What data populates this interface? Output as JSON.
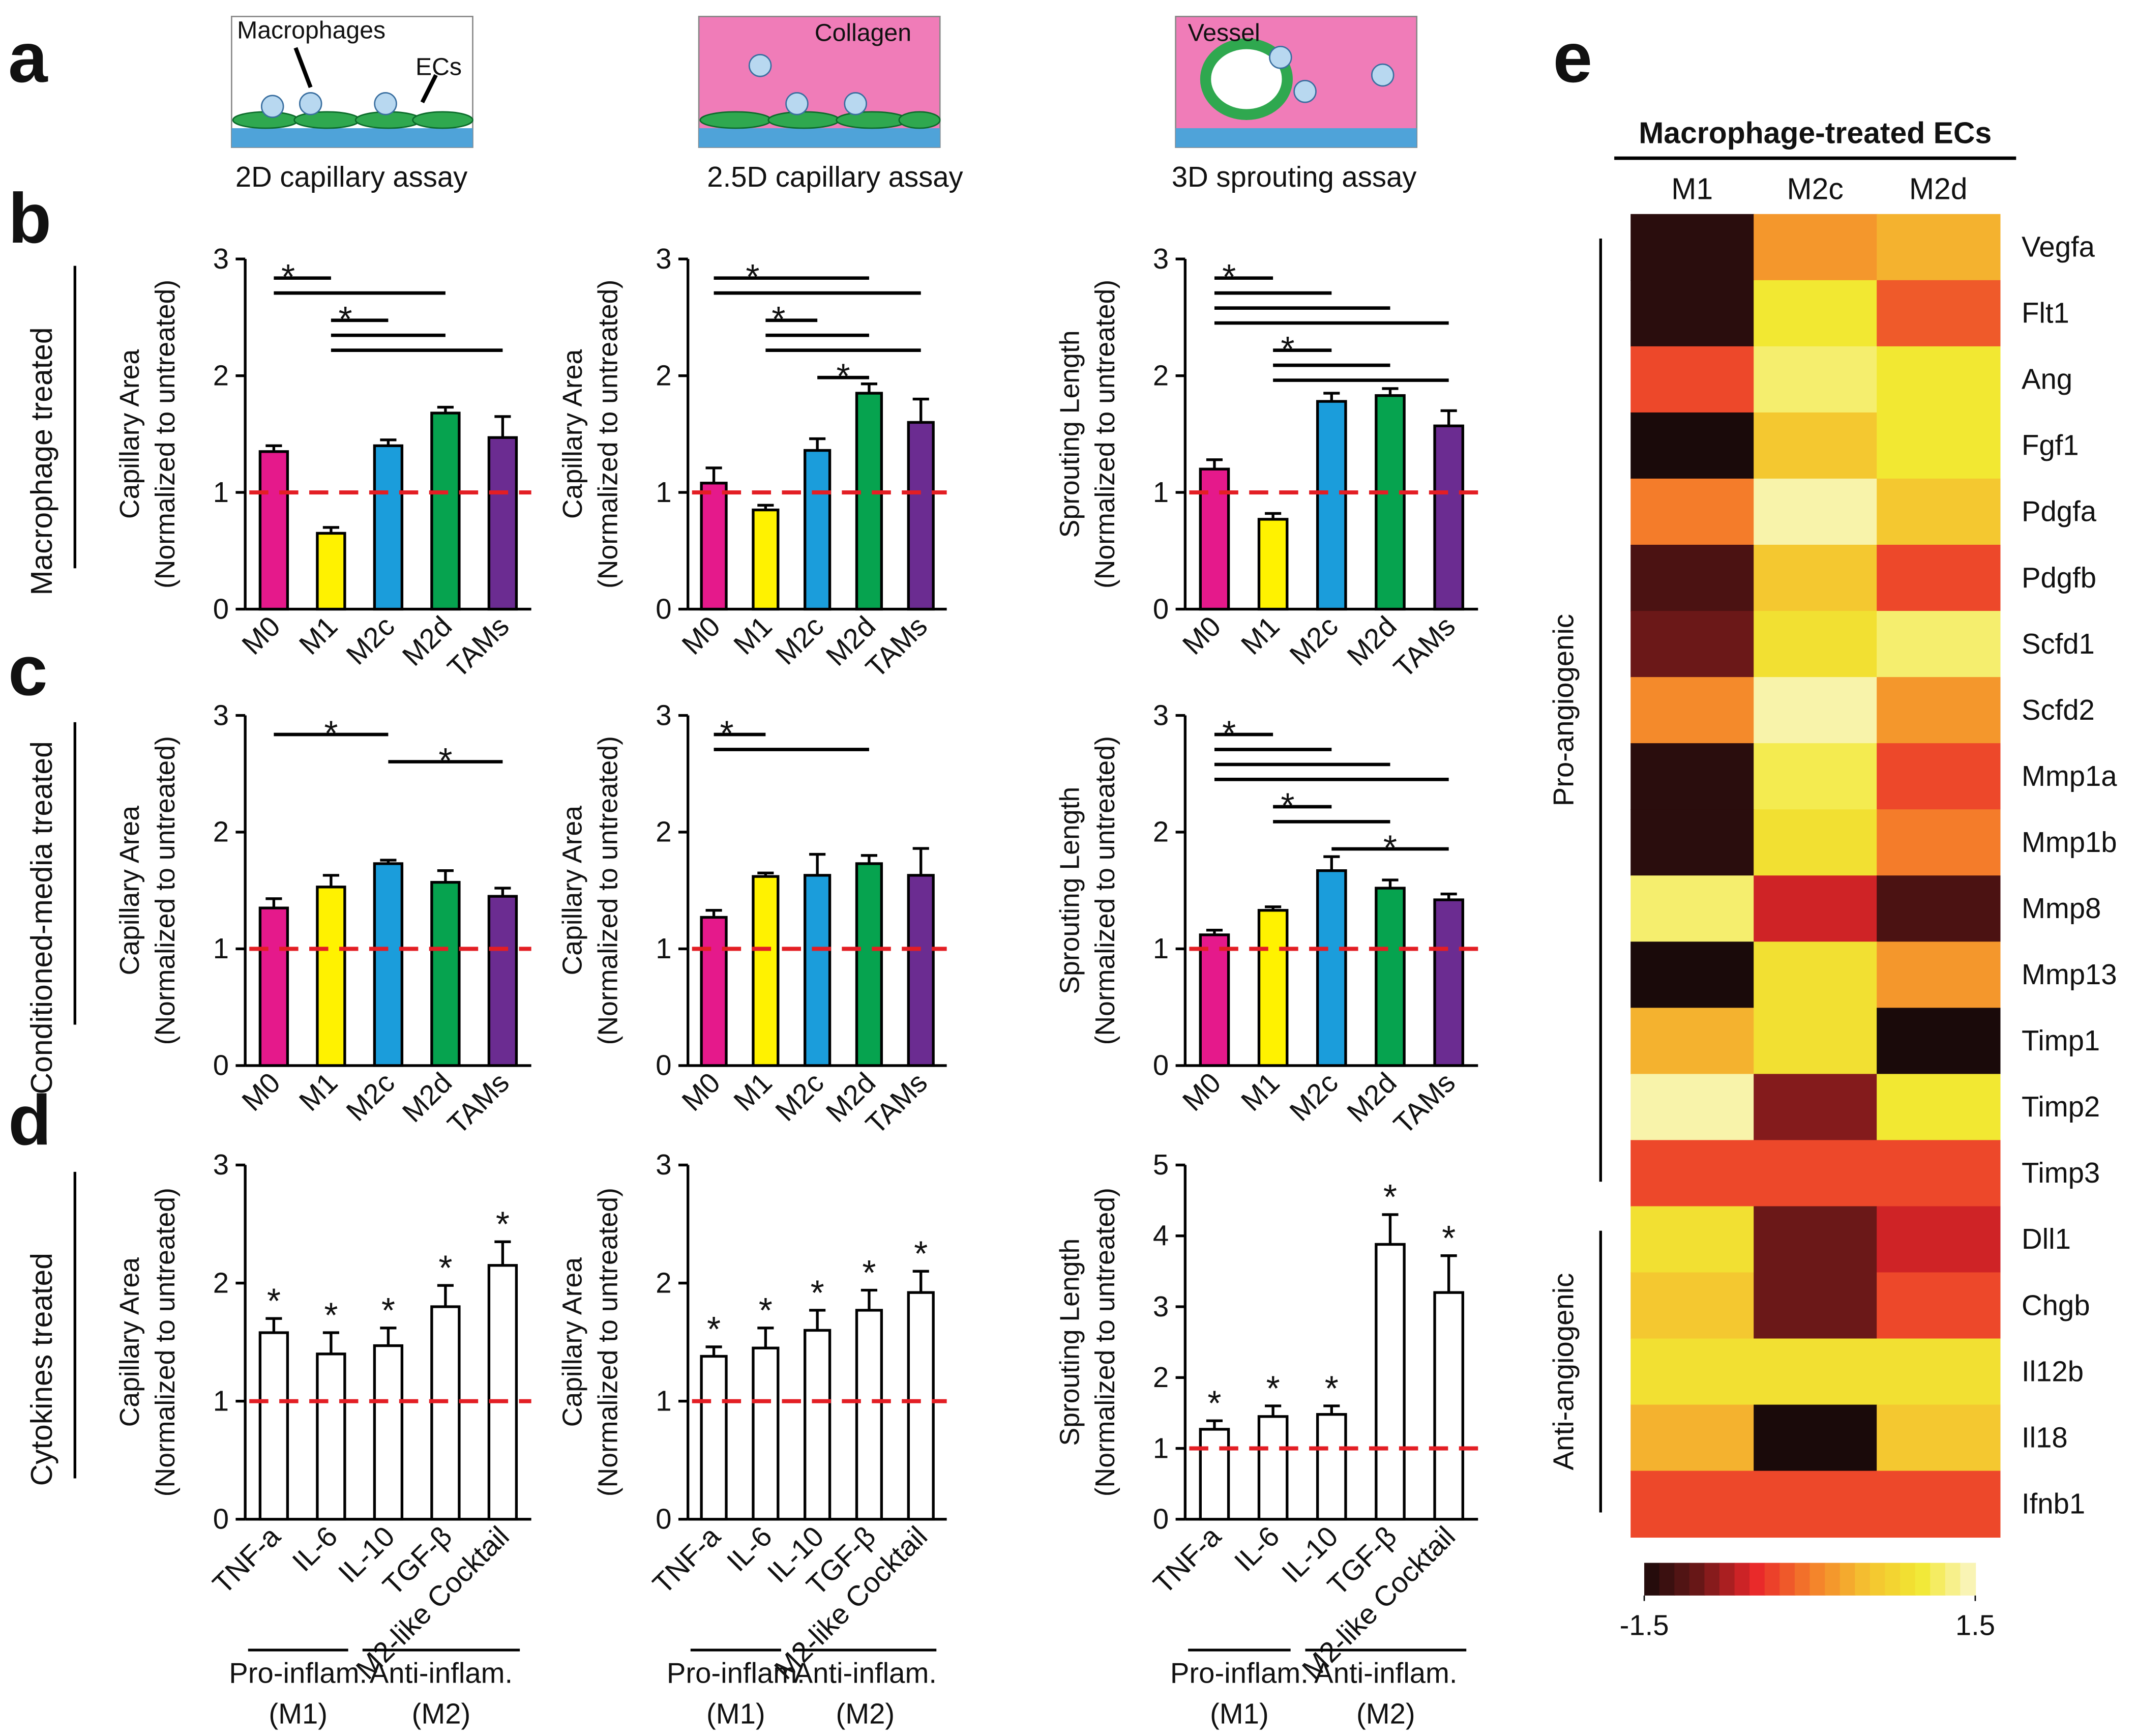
{
  "panel_labels": [
    "a",
    "b",
    "c",
    "d",
    "e"
  ],
  "schematics": [
    {
      "title": "2D capillary assay",
      "labels": [
        "Macrophages",
        "ECs"
      ]
    },
    {
      "title": "2.5D capillary assay",
      "labels": [
        "Collagen"
      ]
    },
    {
      "title": "3D sprouting assay",
      "labels": [
        "Vessel"
      ]
    }
  ],
  "row_labels": [
    "Macrophage treated",
    "Conditioned-media treated",
    "Cytokines treated"
  ],
  "chart_data": [
    {
      "type": "bar",
      "y_label": [
        "Capillary Area",
        "(Normalized to untreated)"
      ],
      "categories": [
        "M0",
        "M1",
        "M2c",
        "M2d",
        "TAMs"
      ],
      "values": [
        1.35,
        0.65,
        1.4,
        1.68,
        1.47
      ],
      "errors": [
        0.05,
        0.05,
        0.05,
        0.05,
        0.18
      ],
      "colors": [
        "#e5198b",
        "#fff200",
        "#1b9ddb",
        "#06a34f",
        "#6b2c91"
      ],
      "ylim": [
        0,
        3
      ],
      "yticks": [
        0,
        1,
        2,
        3
      ],
      "reference_line": 1,
      "reference_color": "#e31e24",
      "significance": [
        {
          "from": "M0",
          "to": "M1",
          "label": "*"
        },
        {
          "from": "M0",
          "to": "M2d"
        },
        {
          "from": "M1",
          "to": "M2c",
          "label": "*"
        },
        {
          "from": "M1",
          "to": "M2d"
        },
        {
          "from": "M1",
          "to": "TAMs"
        }
      ]
    },
    {
      "type": "bar",
      "y_label": [
        "Capillary Area",
        "(Normalized to untreated)"
      ],
      "categories": [
        "M0",
        "M1",
        "M2c",
        "M2d",
        "TAMs"
      ],
      "values": [
        1.08,
        0.85,
        1.36,
        1.85,
        1.6
      ],
      "errors": [
        0.13,
        0.04,
        0.1,
        0.08,
        0.2
      ],
      "colors": [
        "#e5198b",
        "#fff200",
        "#1b9ddb",
        "#06a34f",
        "#6b2c91"
      ],
      "ylim": [
        0,
        3
      ],
      "yticks": [
        0,
        1,
        2,
        3
      ],
      "reference_line": 1,
      "reference_color": "#e31e24",
      "significance": [
        {
          "from": "M0",
          "to": "M2d",
          "label": "*"
        },
        {
          "from": "M0",
          "to": "TAMs"
        },
        {
          "from": "M1",
          "to": "M2c",
          "label": "*"
        },
        {
          "from": "M1",
          "to": "M2d"
        },
        {
          "from": "M1",
          "to": "TAMs"
        },
        {
          "from": "M2c",
          "to": "M2d",
          "label": "*"
        }
      ]
    },
    {
      "type": "bar",
      "y_label": [
        "Sprouting Length",
        "(Normalized to untreated)"
      ],
      "categories": [
        "M0",
        "M1",
        "M2c",
        "M2d",
        "TAMs"
      ],
      "values": [
        1.2,
        0.77,
        1.78,
        1.83,
        1.57
      ],
      "errors": [
        0.08,
        0.05,
        0.07,
        0.06,
        0.13
      ],
      "colors": [
        "#e5198b",
        "#fff200",
        "#1b9ddb",
        "#06a34f",
        "#6b2c91"
      ],
      "ylim": [
        0,
        3
      ],
      "yticks": [
        0,
        1,
        2,
        3
      ],
      "reference_line": 1,
      "reference_color": "#e31e24",
      "significance": [
        {
          "from": "M0",
          "to": "M1",
          "label": "*"
        },
        {
          "from": "M0",
          "to": "M2c"
        },
        {
          "from": "M0",
          "to": "M2d"
        },
        {
          "from": "M0",
          "to": "TAMs"
        },
        {
          "from": "M1",
          "to": "M2c",
          "label": "*"
        },
        {
          "from": "M1",
          "to": "M2d"
        },
        {
          "from": "M1",
          "to": "TAMs"
        }
      ]
    },
    {
      "type": "bar",
      "y_label": [
        "Capillary Area",
        "(Normalized to untreated)"
      ],
      "categories": [
        "M0",
        "M1",
        "M2c",
        "M2d",
        "TAMs"
      ],
      "values": [
        1.35,
        1.53,
        1.73,
        1.57,
        1.45
      ],
      "errors": [
        0.08,
        0.1,
        0.03,
        0.1,
        0.07
      ],
      "colors": [
        "#e5198b",
        "#fff200",
        "#1b9ddb",
        "#06a34f",
        "#6b2c91"
      ],
      "ylim": [
        0,
        3
      ],
      "yticks": [
        0,
        1,
        2,
        3
      ],
      "reference_line": 1,
      "reference_color": "#e31e24",
      "significance": [
        {
          "from": "M0",
          "to": "M2c",
          "label": "*"
        },
        {
          "from": "M2c",
          "to": "TAMs",
          "label": "*"
        }
      ]
    },
    {
      "type": "bar",
      "y_label": [
        "Capillary Area",
        "(Normalized to untreated)"
      ],
      "categories": [
        "M0",
        "M1",
        "M2c",
        "M2d",
        "TAMs"
      ],
      "values": [
        1.27,
        1.62,
        1.63,
        1.73,
        1.63
      ],
      "errors": [
        0.06,
        0.03,
        0.18,
        0.07,
        0.23
      ],
      "colors": [
        "#e5198b",
        "#fff200",
        "#1b9ddb",
        "#06a34f",
        "#6b2c91"
      ],
      "ylim": [
        0,
        3
      ],
      "yticks": [
        0,
        1,
        2,
        3
      ],
      "reference_line": 1,
      "reference_color": "#e31e24",
      "significance": [
        {
          "from": "M0",
          "to": "M1",
          "label": "*"
        },
        {
          "from": "M0",
          "to": "M2d"
        }
      ]
    },
    {
      "type": "bar",
      "y_label": [
        "Sprouting Length",
        "(Normalized to untreated)"
      ],
      "categories": [
        "M0",
        "M1",
        "M2c",
        "M2d",
        "TAMs"
      ],
      "values": [
        1.12,
        1.33,
        1.67,
        1.52,
        1.42
      ],
      "errors": [
        0.04,
        0.03,
        0.12,
        0.07,
        0.05
      ],
      "colors": [
        "#e5198b",
        "#fff200",
        "#1b9ddb",
        "#06a34f",
        "#6b2c91"
      ],
      "ylim": [
        0,
        3
      ],
      "yticks": [
        0,
        1,
        2,
        3
      ],
      "reference_line": 1,
      "reference_color": "#e31e24",
      "significance": [
        {
          "from": "M0",
          "to": "M1",
          "label": "*"
        },
        {
          "from": "M0",
          "to": "M2c"
        },
        {
          "from": "M0",
          "to": "M2d"
        },
        {
          "from": "M0",
          "to": "TAMs"
        },
        {
          "from": "M1",
          "to": "M2c",
          "label": "*"
        },
        {
          "from": "M1",
          "to": "M2d"
        },
        {
          "from": "M2c",
          "to": "TAMs",
          "label": "*"
        }
      ]
    },
    {
      "type": "bar",
      "y_label": [
        "Capillary Area",
        "(Normalized to untreated)"
      ],
      "categories": [
        "TNF-a",
        "IL-6",
        "IL-10",
        "TGF-β",
        "M2-like Cocktail"
      ],
      "values": [
        1.58,
        1.4,
        1.47,
        1.8,
        2.15
      ],
      "errors": [
        0.12,
        0.18,
        0.15,
        0.18,
        0.2
      ],
      "colors": [
        "#ffffff",
        "#ffffff",
        "#ffffff",
        "#ffffff",
        "#ffffff"
      ],
      "ylim": [
        0,
        3
      ],
      "yticks": [
        0,
        1,
        2,
        3
      ],
      "reference_line": 1,
      "reference_color": "#e31e24",
      "annotations": [
        "*",
        "*",
        "*",
        "*",
        "*"
      ],
      "groups": [
        {
          "label": [
            "Pro-inflam.",
            "(M1)"
          ],
          "from": "TNF-a",
          "to": "IL-6"
        },
        {
          "label": [
            "Anti-inflam.",
            "(M2)"
          ],
          "from": "IL-10",
          "to": "M2-like Cocktail"
        }
      ]
    },
    {
      "type": "bar",
      "y_label": [
        "Capillary Area",
        "(Normalized to untreated)"
      ],
      "categories": [
        "TNF-a",
        "IL-6",
        "IL-10",
        "TGF-β",
        "M2-like Cocktail"
      ],
      "values": [
        1.38,
        1.45,
        1.6,
        1.77,
        1.92
      ],
      "errors": [
        0.08,
        0.17,
        0.17,
        0.17,
        0.18
      ],
      "colors": [
        "#ffffff",
        "#ffffff",
        "#ffffff",
        "#ffffff",
        "#ffffff"
      ],
      "ylim": [
        0,
        3
      ],
      "yticks": [
        0,
        1,
        2,
        3
      ],
      "reference_line": 1,
      "reference_color": "#e31e24",
      "annotations": [
        "*",
        "*",
        "*",
        "*",
        "*"
      ],
      "groups": [
        {
          "label": [
            "Pro-inflam.",
            "(M1)"
          ],
          "from": "TNF-a",
          "to": "IL-6"
        },
        {
          "label": [
            "Anti-inflam.",
            "(M2)"
          ],
          "from": "IL-10",
          "to": "M2-like Cocktail"
        }
      ]
    },
    {
      "type": "bar",
      "y_label": [
        "Sprouting Length",
        "(Normalized to untreated)"
      ],
      "categories": [
        "TNF-a",
        "IL-6",
        "IL-10",
        "TGF-β",
        "M2-like Cocktail"
      ],
      "values": [
        1.27,
        1.45,
        1.48,
        3.88,
        3.2
      ],
      "errors": [
        0.12,
        0.15,
        0.12,
        0.42,
        0.52
      ],
      "colors": [
        "#ffffff",
        "#ffffff",
        "#ffffff",
        "#ffffff",
        "#ffffff"
      ],
      "ylim": [
        0,
        5
      ],
      "yticks": [
        0,
        1,
        2,
        3,
        4,
        5
      ],
      "reference_line": 1,
      "reference_color": "#e31e24",
      "annotations": [
        "*",
        "*",
        "*",
        "*",
        "*"
      ],
      "groups": [
        {
          "label": [
            "Pro-inflam.",
            "(M1)"
          ],
          "from": "TNF-a",
          "to": "IL-6"
        },
        {
          "label": [
            "Anti-inflam.",
            "(M2)"
          ],
          "from": "IL-10",
          "to": "M2-like Cocktail"
        }
      ]
    },
    {
      "type": "heatmap",
      "title": "Macrophage-treated ECs",
      "columns": [
        "M1",
        "M2c",
        "M2d"
      ],
      "rows": [
        "Vegfa",
        "Flt1",
        "Ang",
        "Fgf1",
        "Pdgfa",
        "Pdgfb",
        "Scfd1",
        "Scfd2",
        "Mmp1a",
        "Mmp1b",
        "Mmp8",
        "Mmp13",
        "Timp1",
        "Timp2",
        "Timp3",
        "Dll1",
        "Chgb",
        "Il12b",
        "Il18",
        "Ifnb1"
      ],
      "values": [
        [
          -1.4,
          0.2,
          0.4
        ],
        [
          -1.4,
          1.0,
          -0.2
        ],
        [
          -0.3,
          1.2,
          1.0
        ],
        [
          -1.5,
          0.6,
          1.0
        ],
        [
          0.0,
          1.4,
          0.6
        ],
        [
          -1.2,
          0.6,
          -0.3
        ],
        [
          -1.0,
          0.9,
          1.2
        ],
        [
          0.1,
          1.4,
          0.2
        ],
        [
          -1.4,
          1.1,
          -0.3
        ],
        [
          -1.4,
          0.9,
          0.0
        ],
        [
          1.2,
          -0.6,
          -1.2
        ],
        [
          -1.5,
          0.9,
          0.2
        ],
        [
          0.4,
          0.9,
          -1.5
        ],
        [
          1.4,
          -0.9,
          1.0
        ],
        [
          -0.3,
          -0.3,
          -0.3
        ],
        [
          0.9,
          -1.0,
          -0.6
        ],
        [
          0.6,
          -1.0,
          -0.3
        ],
        [
          0.9,
          0.9,
          0.9
        ],
        [
          0.4,
          -1.5,
          0.6
        ],
        [
          -0.3,
          -0.3,
          -0.3
        ]
      ],
      "clim": [
        -1.5,
        1.5
      ],
      "colorbar_ticks": [
        -1.5,
        1.5
      ],
      "colormap": [
        "#1a0a0a",
        "#6b1818",
        "#e8262a",
        "#f47c2a",
        "#f4c030",
        "#f2e832",
        "#faf6c8"
      ],
      "groups": [
        {
          "label": "Pro-angiogenic",
          "from": "Vegfa",
          "to": "Timp3"
        },
        {
          "label": "Anti-angiogenic",
          "from": "Dll1",
          "to": "Ifnb1"
        }
      ]
    }
  ]
}
